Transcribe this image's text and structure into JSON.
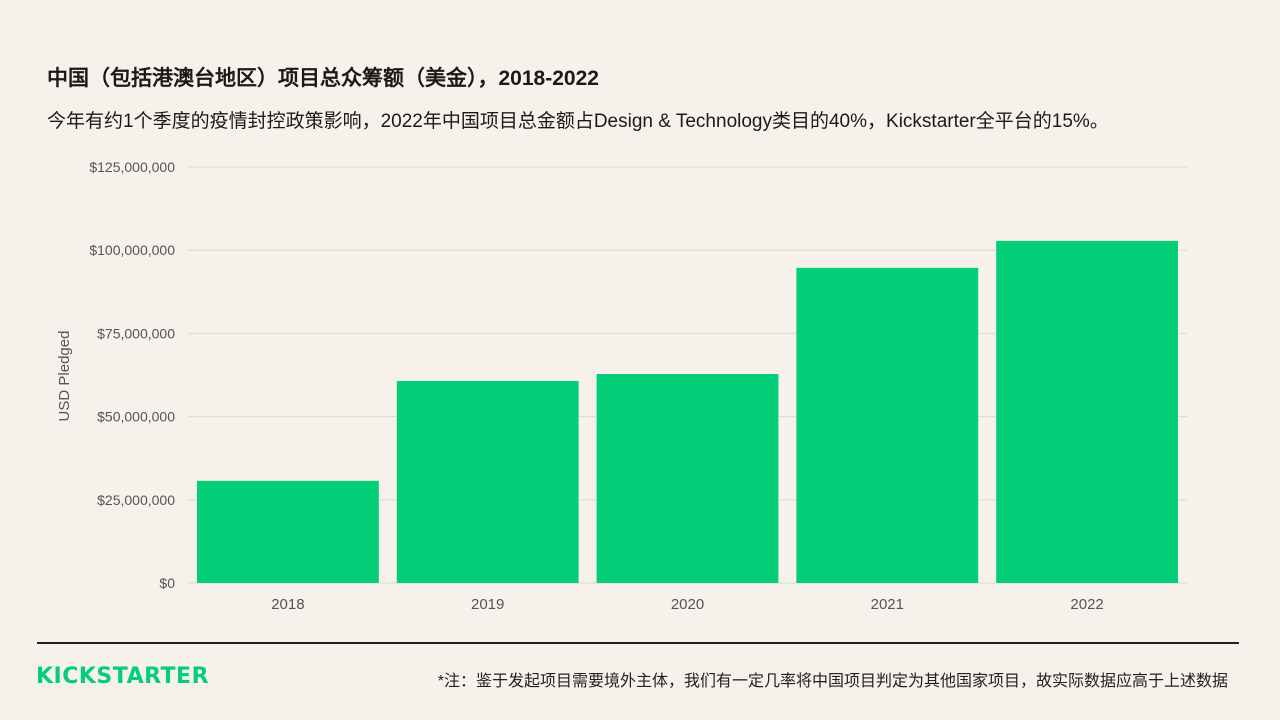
{
  "title": "中国（包括港澳台地区）项目总众筹额（美金），2018-2022",
  "subtitle": "今年有约1个季度的疫情封控政策影响，2022年中国项目总金额占Design & Technology类目的40%，Kickstarter全平台的15%。",
  "footer": {
    "logo": "KICKSTARTER",
    "note": "*注：鉴于发起项目需要境外主体，我们有一定几率将中国项目判定为其他国家项目，故实际数据应高于上述数据"
  },
  "colors": {
    "bar": "#05ce78",
    "logo": "#05ce78",
    "background": "#f6f1eb"
  },
  "chart_data": {
    "type": "bar",
    "categories": [
      "2018",
      "2019",
      "2020",
      "2021",
      "2022"
    ],
    "values": [
      30700000,
      60700000,
      62800000,
      94700000,
      102800000
    ],
    "xlabel": "",
    "ylabel": "USD Pledged",
    "ylim": [
      0,
      125000000
    ],
    "yticks": [
      0,
      25000000,
      50000000,
      75000000,
      100000000,
      125000000
    ],
    "ytick_labels": [
      "$0",
      "$25,000,000",
      "$50,000,000",
      "$75,000,000",
      "$100,000,000",
      "$125,000,000"
    ],
    "grid": true,
    "legend": "none"
  }
}
